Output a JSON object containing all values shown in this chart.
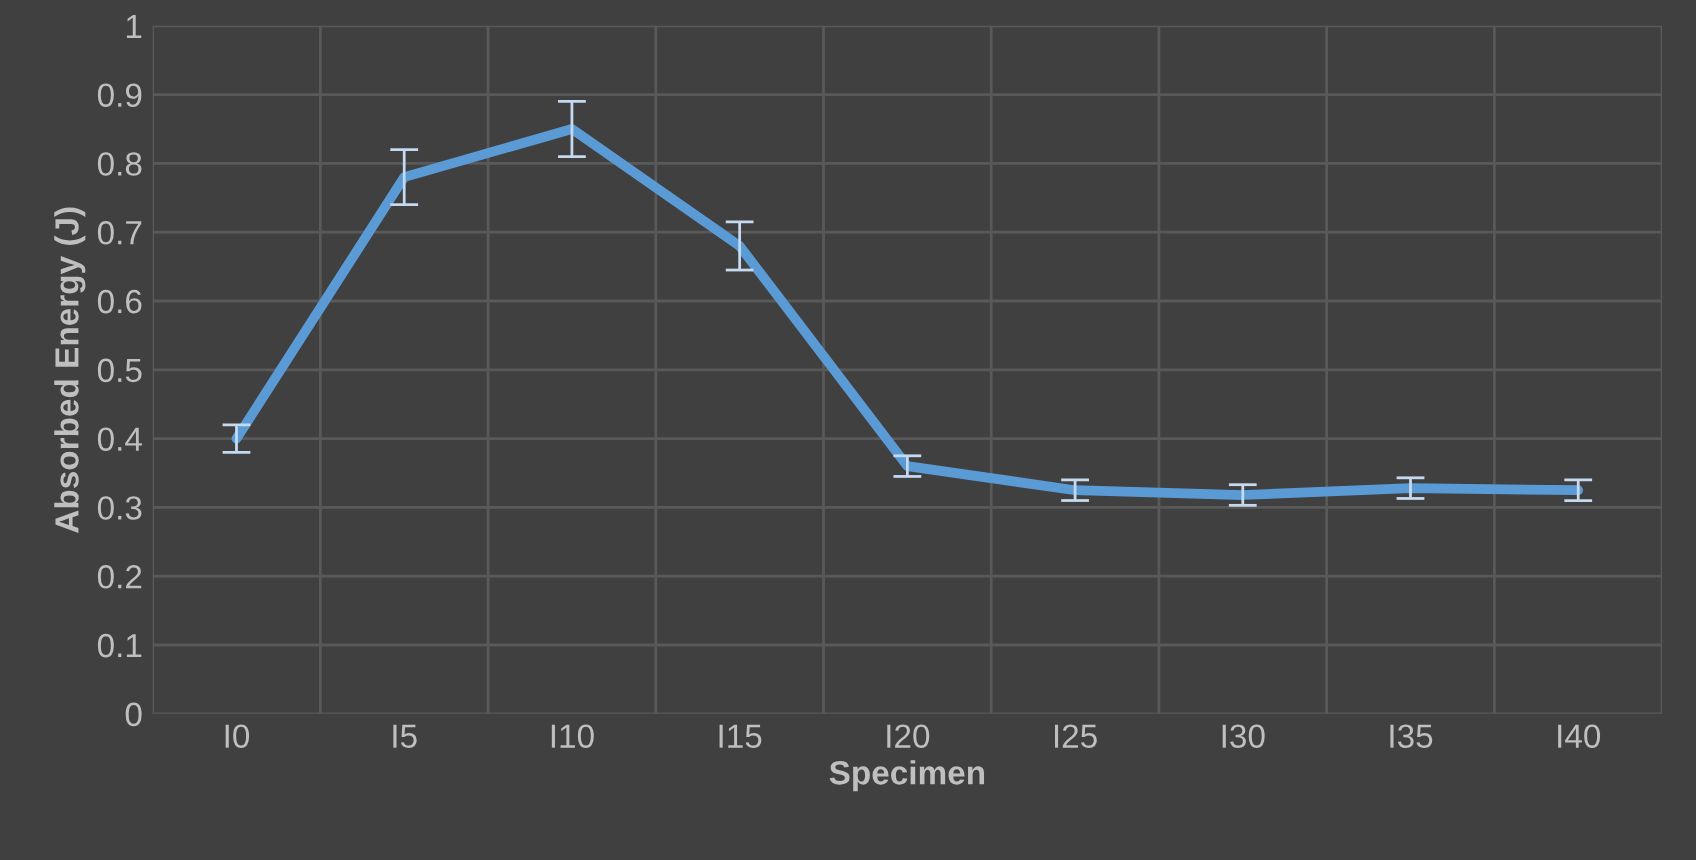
{
  "chart_data": {
    "type": "line",
    "xlabel": "Specimen",
    "ylabel": "Absorbed Energy (J)",
    "categories": [
      "I0",
      "I5",
      "I10",
      "I15",
      "I20",
      "I25",
      "I30",
      "I35",
      "I40"
    ],
    "series": [
      {
        "color": "#5b9bd5",
        "values": [
          0.4,
          0.78,
          0.85,
          0.68,
          0.36,
          0.325,
          0.318,
          0.328,
          0.325
        ],
        "errors": [
          0.02,
          0.04,
          0.04,
          0.035,
          0.015,
          0.015,
          0.015,
          0.015,
          0.015
        ]
      }
    ],
    "ylim": [
      0,
      1
    ],
    "yticks": [
      0,
      0.1,
      0.2,
      0.3,
      0.4,
      0.5,
      0.6,
      0.7,
      0.8,
      0.9,
      1
    ],
    "grid": true,
    "legend": false,
    "marker": "none",
    "line_style": "solid"
  }
}
